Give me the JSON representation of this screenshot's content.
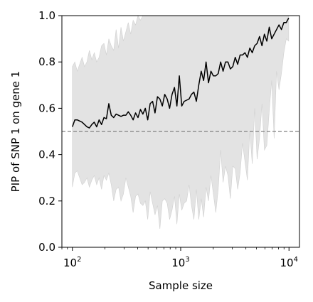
{
  "chart_data": {
    "type": "line",
    "title": "",
    "xlabel": "Sample size",
    "ylabel": "PIP of SNP 1 on gene 1",
    "xscale": "log",
    "xlim": [
      80,
      12500
    ],
    "ylim": [
      0.0,
      1.0
    ],
    "grid": false,
    "legend": "none",
    "x_ticks": [
      {
        "value": 100,
        "base": "10",
        "exp": "2"
      },
      {
        "value": 1000,
        "base": "10",
        "exp": "3"
      },
      {
        "value": 10000,
        "base": "10",
        "exp": "4"
      }
    ],
    "y_ticks": [
      "0.0",
      "0.2",
      "0.4",
      "0.6",
      "0.8",
      "1.0"
    ],
    "reference_line": {
      "y": 0.5,
      "style": "dashed",
      "color": "#808080"
    },
    "band_color": "#e3e3e3",
    "line_color": "#000000",
    "series": [
      {
        "x": [
          100,
          105.3,
          110.9,
          116.7,
          122.9,
          129.4,
          136.3,
          143.5,
          151.2,
          159.2,
          167.6,
          176.5,
          185.9,
          195.7,
          206.1,
          217,
          228.5,
          240.7,
          253.4,
          266.9,
          281,
          295.9,
          311.6,
          328.2,
          345.6,
          363.9,
          383.2,
          403.5,
          424.9,
          447.5,
          471.2,
          496.2,
          522.5,
          550.2,
          579.4,
          610.2,
          642.5,
          676.6,
          712.5,
          750.3,
          790.1,
          832,
          876.1,
          922.6,
          971.5,
          1023,
          1077.3,
          1134.4,
          1194.6,
          1257.9,
          1324.6,
          1394.9,
          1468.9,
          1546.8,
          1628.8,
          1715.2,
          1806.2,
          1902,
          2002.8,
          2109.1,
          2221,
          2338.8,
          2462.8,
          2593.4,
          2731,
          2875.8,
          3028.4,
          3189,
          3358.2,
          3536.3,
          3723.8,
          3921.4,
          4129.4,
          4348.4,
          4579,
          4821.9,
          5077.6,
          5346.9,
          5630.5,
          5929.2,
          6243.7,
          6574.8,
          6923.5,
          7290.8,
          7677.5,
          8084.7,
          8513.5,
          8965.1,
          9440.6,
          9941.3
        ],
        "values": [
          0.52,
          0.55,
          0.55,
          0.545,
          0.54,
          0.53,
          0.52,
          0.515,
          0.53,
          0.54,
          0.52,
          0.55,
          0.53,
          0.56,
          0.555,
          0.62,
          0.57,
          0.56,
          0.575,
          0.57,
          0.565,
          0.57,
          0.57,
          0.585,
          0.57,
          0.55,
          0.58,
          0.56,
          0.595,
          0.575,
          0.6,
          0.55,
          0.62,
          0.63,
          0.58,
          0.65,
          0.64,
          0.61,
          0.66,
          0.64,
          0.6,
          0.66,
          0.69,
          0.61,
          0.74,
          0.61,
          0.63,
          0.635,
          0.64,
          0.66,
          0.67,
          0.63,
          0.7,
          0.76,
          0.72,
          0.8,
          0.71,
          0.76,
          0.74,
          0.74,
          0.75,
          0.8,
          0.76,
          0.8,
          0.8,
          0.77,
          0.78,
          0.82,
          0.79,
          0.83,
          0.83,
          0.84,
          0.82,
          0.86,
          0.84,
          0.87,
          0.88,
          0.91,
          0.87,
          0.92,
          0.89,
          0.95,
          0.9,
          0.92,
          0.94,
          0.96,
          0.94,
          0.97,
          0.97,
          0.99
        ],
        "lower": [
          0.26,
          0.32,
          0.33,
          0.3,
          0.27,
          0.28,
          0.3,
          0.26,
          0.29,
          0.31,
          0.27,
          0.3,
          0.25,
          0.31,
          0.29,
          0.32,
          0.27,
          0.2,
          0.25,
          0.26,
          0.2,
          0.23,
          0.3,
          0.26,
          0.22,
          0.15,
          0.22,
          0.23,
          0.19,
          0.18,
          0.2,
          0.12,
          0.24,
          0.19,
          0.14,
          0.18,
          0.08,
          0.2,
          0.21,
          0.19,
          0.12,
          0.16,
          0.22,
          0.1,
          0.23,
          0.16,
          0.19,
          0.2,
          0.27,
          0.18,
          0.12,
          0.25,
          0.12,
          0.21,
          0.13,
          0.26,
          0.2,
          0.31,
          0.23,
          0.15,
          0.25,
          0.42,
          0.28,
          0.35,
          0.31,
          0.21,
          0.35,
          0.34,
          0.25,
          0.32,
          0.45,
          0.37,
          0.29,
          0.5,
          0.36,
          0.6,
          0.38,
          0.47,
          0.62,
          0.42,
          0.44,
          0.59,
          0.72,
          0.47,
          0.76,
          0.68,
          0.75,
          0.84,
          0.9,
          0.89
        ],
        "upper": [
          0.78,
          0.8,
          0.76,
          0.79,
          0.82,
          0.78,
          0.8,
          0.85,
          0.81,
          0.84,
          0.8,
          0.82,
          0.87,
          0.88,
          0.83,
          0.9,
          0.87,
          0.85,
          0.94,
          0.86,
          0.95,
          0.89,
          0.93,
          0.97,
          0.92,
          0.98,
          0.96,
          1,
          0.98,
          1,
          1,
          1,
          1,
          1,
          1,
          1,
          1,
          1,
          1,
          1,
          1,
          1,
          1,
          1,
          1,
          1,
          1,
          1,
          1,
          1,
          1,
          1,
          1,
          1,
          1,
          1,
          1,
          1,
          1,
          1,
          1,
          1,
          1,
          1,
          1,
          1,
          1,
          1,
          1,
          1,
          1,
          1,
          1,
          1,
          1,
          1,
          1,
          1,
          1,
          1,
          1,
          1,
          1,
          1,
          1,
          1,
          1,
          1,
          1,
          1
        ]
      }
    ]
  }
}
